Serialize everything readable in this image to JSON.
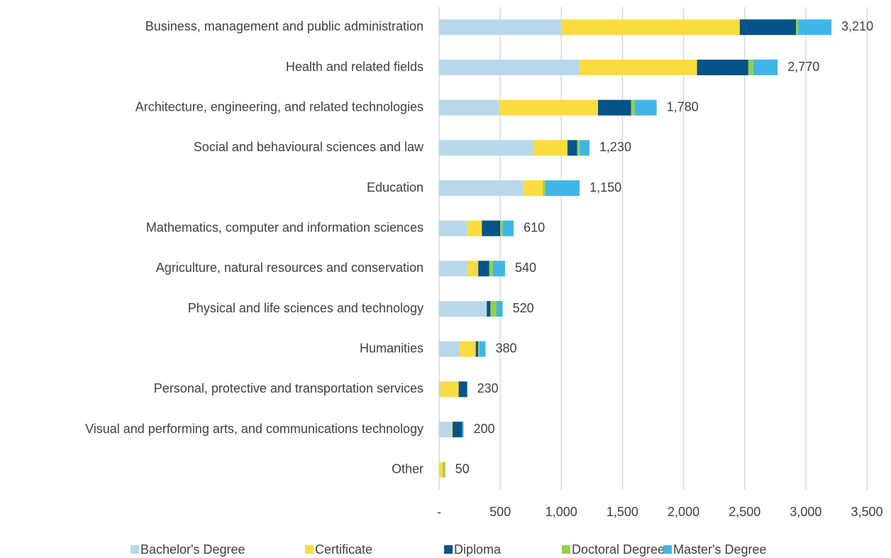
{
  "chart_data": {
    "type": "stacked-barh",
    "categories": [
      "Business, management and public administration",
      "Health and related fields",
      "Architecture, engineering, and related technologies",
      "Social and behavioural sciences and law",
      "Education",
      "Mathematics, computer and information sciences",
      "Agriculture, natural resources and conservation",
      "Physical and life sciences and technology",
      "Humanities",
      "Personal, protective and transportation services",
      "Visual and performing arts, and communications technology",
      "Other"
    ],
    "series": [
      {
        "name": "Bachelor's Degree",
        "color": "#b8d8ea",
        "values": [
          1000,
          1150,
          490,
          770,
          690,
          230,
          230,
          390,
          170,
          10,
          100,
          0
        ]
      },
      {
        "name": "Certificate",
        "color": "#fbdc3f",
        "values": [
          1460,
          960,
          810,
          280,
          160,
          120,
          90,
          0,
          130,
          150,
          10,
          30
        ]
      },
      {
        "name": "Diploma",
        "color": "#075389",
        "values": [
          460,
          420,
          270,
          80,
          0,
          150,
          90,
          30,
          20,
          70,
          80,
          0
        ]
      },
      {
        "name": "Doctoral Degree",
        "color": "#92d050",
        "values": [
          20,
          40,
          30,
          20,
          20,
          20,
          30,
          50,
          10,
          0,
          0,
          20
        ]
      },
      {
        "name": "Master's Degree",
        "color": "#41b6e6",
        "values": [
          270,
          200,
          180,
          80,
          280,
          90,
          100,
          50,
          50,
          0,
          10,
          0
        ]
      }
    ],
    "totals": [
      3210,
      2770,
      1780,
      1230,
      1150,
      610,
      540,
      520,
      380,
      230,
      200,
      50
    ],
    "total_labels": [
      "3,210",
      "2,770",
      "1,780",
      "1,230",
      "1,150",
      "610",
      "540",
      "520",
      "380",
      "230",
      "200",
      "50"
    ],
    "xlim": [
      0,
      3500
    ],
    "xticks": [
      {
        "value": 0,
        "label": "-"
      },
      500,
      {
        "value": 1000,
        "label": "1,000"
      },
      {
        "value": 1500,
        "label": "1,500"
      },
      {
        "value": 2000,
        "label": "2,000"
      },
      {
        "value": 2500,
        "label": "2,500"
      },
      {
        "value": 3000,
        "label": "3,000"
      },
      {
        "value": 3500,
        "label": "3,500"
      }
    ],
    "grid": true,
    "legend": "bottom"
  }
}
